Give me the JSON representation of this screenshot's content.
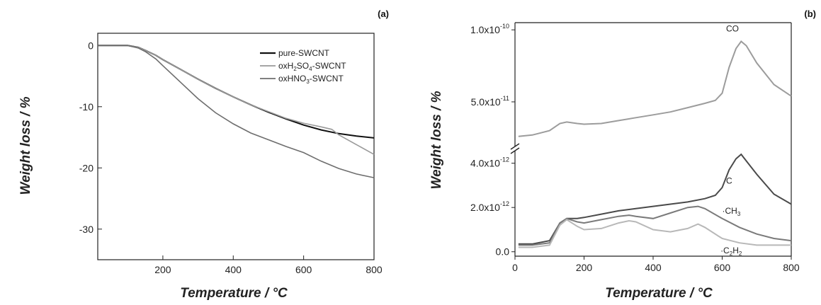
{
  "chart_data": [
    {
      "panel": "(a)",
      "type": "line",
      "xlabel": "Temperature / °C",
      "ylabel": "Weight loss / %",
      "xlim": [
        15,
        800
      ],
      "ylim": [
        -35,
        2
      ],
      "xticks": [
        200,
        400,
        600,
        800
      ],
      "yticks": [
        0,
        -10,
        -20,
        -30
      ],
      "ytick_labels": [
        "0",
        "-10",
        "-20",
        "-30"
      ],
      "legend_position": "top-right",
      "series": [
        {
          "name": "pure-SWCNT",
          "legend": [
            "pure-SWCNT"
          ],
          "color": "#111111",
          "x": [
            15,
            50,
            100,
            130,
            150,
            180,
            200,
            250,
            300,
            350,
            400,
            450,
            500,
            550,
            600,
            650,
            700,
            750,
            800
          ],
          "y": [
            0,
            0,
            0,
            -0.3,
            -0.8,
            -1.6,
            -2.3,
            -3.9,
            -5.5,
            -7.0,
            -8.4,
            -9.7,
            -10.9,
            -12.0,
            -13.0,
            -13.8,
            -14.4,
            -14.8,
            -15.1
          ]
        },
        {
          "name": "oxH2SO4-SWCNT",
          "legend": [
            "oxH",
            "2",
            "SO",
            "4",
            "-SWCNT"
          ],
          "color": "#9a9a9a",
          "x": [
            15,
            50,
            100,
            130,
            150,
            180,
            200,
            250,
            300,
            350,
            400,
            450,
            500,
            550,
            600,
            650,
            680,
            700,
            750,
            800
          ],
          "y": [
            0,
            0,
            0,
            -0.3,
            -0.8,
            -1.6,
            -2.3,
            -3.9,
            -5.5,
            -7.0,
            -8.4,
            -9.7,
            -10.8,
            -11.9,
            -12.7,
            -13.3,
            -13.7,
            -14.6,
            -16.2,
            -17.8
          ]
        },
        {
          "name": "oxHNO3-SWCNT",
          "legend": [
            "oxHNO",
            "3",
            "-SWCNT"
          ],
          "color": "#6e6e6e",
          "x": [
            15,
            50,
            100,
            130,
            150,
            180,
            200,
            250,
            300,
            350,
            400,
            450,
            500,
            550,
            600,
            650,
            700,
            750,
            800
          ],
          "y": [
            0,
            0,
            0,
            -0.4,
            -1.0,
            -2.2,
            -3.3,
            -6.0,
            -8.7,
            -11.0,
            -12.8,
            -14.3,
            -15.4,
            -16.5,
            -17.5,
            -18.9,
            -20.1,
            -21.0,
            -21.6
          ]
        }
      ]
    },
    {
      "panel": "(b)",
      "type": "line",
      "xlabel": "Temperature / °C",
      "ylabel": "Weight loss / %",
      "xlim": [
        0,
        800
      ],
      "axis_break": true,
      "ylim_upper": [
        2e-11,
        1.05e-10
      ],
      "ylim_lower": [
        -2e-13,
        4.5e-12
      ],
      "xticks": [
        0,
        200,
        400,
        600,
        800
      ],
      "yticks_upper": [
        {
          "value": 1e-10,
          "mant": "1.0x10",
          "exp": "-10"
        },
        {
          "value": 5e-11,
          "mant": "5.0x10",
          "exp": "-11"
        }
      ],
      "yticks_lower": [
        {
          "value": 4e-12,
          "mant": "4.0x10",
          "exp": "-12"
        },
        {
          "value": 2e-12,
          "mant": "2.0x10",
          "exp": "-12"
        },
        {
          "value": 0.0,
          "mant": "0.0",
          "exp": ""
        }
      ],
      "series": [
        {
          "name": "CO",
          "label": [
            {
              "t": "CO"
            }
          ],
          "segment": "upper",
          "color": "#9c9c9c",
          "x": [
            10,
            50,
            100,
            130,
            150,
            180,
            200,
            250,
            300,
            350,
            400,
            450,
            500,
            550,
            580,
            600,
            620,
            640,
            655,
            670,
            700,
            750,
            800
          ],
          "y": [
            2.6e-11,
            2.7e-11,
            3e-11,
            3.5e-11,
            3.6e-11,
            3.5e-11,
            3.45e-11,
            3.5e-11,
            3.7e-11,
            3.9e-11,
            4.1e-11,
            4.3e-11,
            4.6e-11,
            4.9e-11,
            5.1e-11,
            5.6e-11,
            7.4e-11,
            8.7e-11,
            9.2e-11,
            8.9e-11,
            7.7e-11,
            6.2e-11,
            5.4e-11
          ]
        },
        {
          "name": "C",
          "label": [
            {
              "t": "C"
            }
          ],
          "segment": "lower",
          "color": "#4a4a4a",
          "x": [
            10,
            50,
            100,
            130,
            150,
            180,
            200,
            250,
            300,
            350,
            400,
            450,
            500,
            550,
            580,
            600,
            620,
            640,
            655,
            670,
            700,
            750,
            800
          ],
          "y": [
            3.5e-13,
            3.5e-13,
            5e-13,
            1.3e-12,
            1.5e-12,
            1.5e-12,
            1.55e-12,
            1.7e-12,
            1.85e-12,
            1.95e-12,
            2.05e-12,
            2.15e-12,
            2.25e-12,
            2.4e-12,
            2.55e-12,
            2.9e-12,
            3.7e-12,
            4.2e-12,
            4.4e-12,
            4.1e-12,
            3.5e-12,
            2.6e-12,
            2.15e-12
          ]
        },
        {
          "name": "·CH3",
          "label": [
            {
              "t": "·CH"
            },
            {
              "t": "3",
              "sub": true
            }
          ],
          "segment": "lower",
          "color": "#7a7a7a",
          "x": [
            10,
            50,
            100,
            130,
            150,
            180,
            200,
            250,
            300,
            330,
            350,
            400,
            450,
            500,
            530,
            550,
            600,
            650,
            700,
            750,
            800
          ],
          "y": [
            3e-13,
            3e-13,
            4e-13,
            1.3e-12,
            1.5e-12,
            1.35e-12,
            1.3e-12,
            1.45e-12,
            1.6e-12,
            1.65e-12,
            1.6e-12,
            1.5e-12,
            1.75e-12,
            2e-12,
            2.05e-12,
            1.95e-12,
            1.5e-12,
            1.1e-12,
            8e-13,
            6e-13,
            5e-13
          ]
        },
        {
          "name": "·C2H2",
          "label": [
            {
              "t": "·C"
            },
            {
              "t": "2",
              "sub": true
            },
            {
              "t": "H"
            },
            {
              "t": "2",
              "sub": true
            }
          ],
          "segment": "lower",
          "color": "#b8b8b8",
          "x": [
            10,
            50,
            100,
            130,
            150,
            180,
            200,
            250,
            300,
            330,
            350,
            400,
            450,
            500,
            530,
            550,
            600,
            650,
            700,
            750,
            800
          ],
          "y": [
            2e-13,
            2e-13,
            3e-13,
            1.2e-12,
            1.45e-12,
            1.15e-12,
            1e-12,
            1.05e-12,
            1.3e-12,
            1.4e-12,
            1.35e-12,
            1e-12,
            9e-13,
            1.05e-12,
            1.25e-12,
            1.1e-12,
            6e-13,
            4e-13,
            3e-13,
            3e-13,
            3e-13
          ]
        }
      ]
    }
  ]
}
